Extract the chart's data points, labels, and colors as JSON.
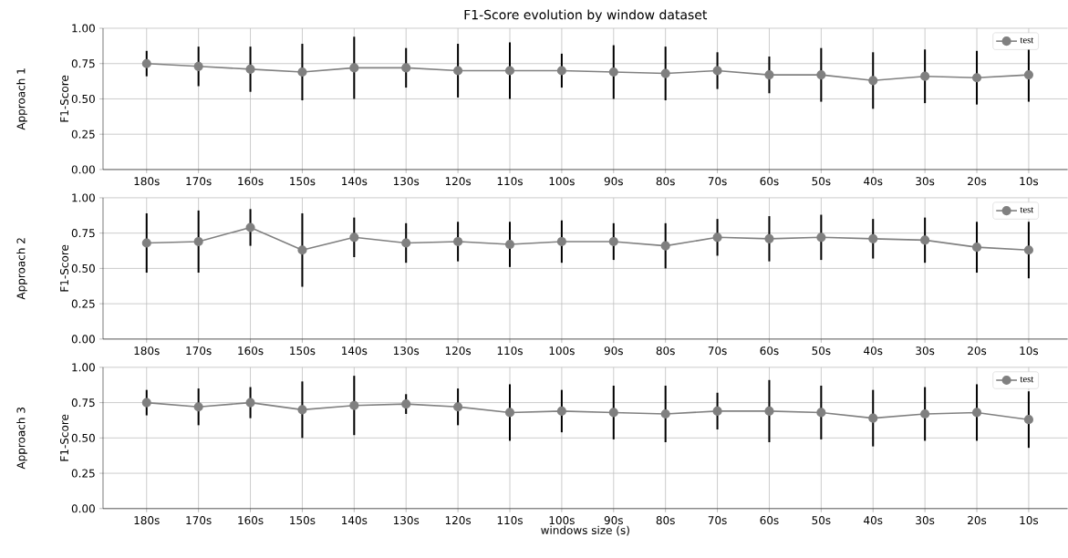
{
  "chart_data": [
    {
      "type": "line",
      "title": "F1-Score evolution by window dataset",
      "ylabel": "F1-Score",
      "annotations": [
        "Approach 1"
      ],
      "categories": [
        "180s",
        "170s",
        "160s",
        "150s",
        "140s",
        "130s",
        "120s",
        "110s",
        "100s",
        "90s",
        "80s",
        "70s",
        "60s",
        "50s",
        "40s",
        "30s",
        "20s",
        "10s"
      ],
      "series": [
        {
          "name": "test",
          "color": "#808080",
          "values": [
            0.75,
            0.73,
            0.71,
            0.69,
            0.72,
            0.72,
            0.7,
            0.7,
            0.7,
            0.69,
            0.68,
            0.7,
            0.67,
            0.67,
            0.63,
            0.66,
            0.65,
            0.67
          ],
          "errors": [
            0.09,
            0.14,
            0.16,
            0.2,
            0.22,
            0.14,
            0.19,
            0.2,
            0.12,
            0.19,
            0.19,
            0.13,
            0.13,
            0.19,
            0.2,
            0.19,
            0.19,
            0.19
          ]
        }
      ],
      "ylim": [
        0,
        1
      ],
      "yticks": [
        {
          "value": 0,
          "label": "0.00"
        },
        {
          "value": 0.25,
          "label": "0.25"
        },
        {
          "value": 0.5,
          "label": "0.50"
        },
        {
          "value": 0.75,
          "label": "0.75"
        },
        {
          "value": 1,
          "label": "1.00"
        }
      ],
      "grid": true,
      "legend": "top right",
      "marker": "circle",
      "line_style": "solid"
    },
    {
      "type": "line",
      "ylabel": "F1-Score",
      "annotations": [
        "Approach 2"
      ],
      "categories": [
        "180s",
        "170s",
        "160s",
        "150s",
        "140s",
        "130s",
        "120s",
        "110s",
        "100s",
        "90s",
        "80s",
        "70s",
        "60s",
        "50s",
        "40s",
        "30s",
        "20s",
        "10s"
      ],
      "series": [
        {
          "name": "test",
          "color": "#808080",
          "values": [
            0.68,
            0.69,
            0.79,
            0.63,
            0.72,
            0.68,
            0.69,
            0.67,
            0.69,
            0.69,
            0.66,
            0.72,
            0.71,
            0.72,
            0.71,
            0.7,
            0.65,
            0.63
          ],
          "errors": [
            0.21,
            0.22,
            0.13,
            0.26,
            0.14,
            0.14,
            0.14,
            0.16,
            0.15,
            0.13,
            0.16,
            0.13,
            0.16,
            0.16,
            0.14,
            0.16,
            0.18,
            0.2
          ]
        }
      ],
      "ylim": [
        0,
        1
      ],
      "yticks": [
        {
          "value": 0,
          "label": "0.00"
        },
        {
          "value": 0.25,
          "label": "0.25"
        },
        {
          "value": 0.5,
          "label": "0.50"
        },
        {
          "value": 0.75,
          "label": "0.75"
        },
        {
          "value": 1,
          "label": "1.00"
        }
      ],
      "grid": true,
      "legend": "top right",
      "marker": "circle",
      "line_style": "solid"
    },
    {
      "type": "line",
      "xlabel": "windows size (s)",
      "ylabel": "F1-Score",
      "annotations": [
        "Approach 3"
      ],
      "categories": [
        "180s",
        "170s",
        "160s",
        "150s",
        "140s",
        "130s",
        "120s",
        "110s",
        "100s",
        "90s",
        "80s",
        "70s",
        "60s",
        "50s",
        "40s",
        "30s",
        "20s",
        "10s"
      ],
      "series": [
        {
          "name": "test",
          "color": "#808080",
          "values": [
            0.75,
            0.72,
            0.75,
            0.7,
            0.73,
            0.74,
            0.72,
            0.68,
            0.69,
            0.68,
            0.67,
            0.69,
            0.69,
            0.68,
            0.64,
            0.67,
            0.68,
            0.63
          ],
          "errors": [
            0.09,
            0.13,
            0.11,
            0.2,
            0.21,
            0.07,
            0.13,
            0.2,
            0.15,
            0.19,
            0.2,
            0.13,
            0.22,
            0.19,
            0.2,
            0.19,
            0.2,
            0.2
          ]
        }
      ],
      "ylim": [
        0,
        1
      ],
      "yticks": [
        {
          "value": 0,
          "label": "0.00"
        },
        {
          "value": 0.25,
          "label": "0.25"
        },
        {
          "value": 0.5,
          "label": "0.50"
        },
        {
          "value": 0.75,
          "label": "0.75"
        },
        {
          "value": 1,
          "label": "1.00"
        }
      ],
      "grid": true,
      "legend": "top right",
      "marker": "circle",
      "line_style": "solid"
    }
  ]
}
